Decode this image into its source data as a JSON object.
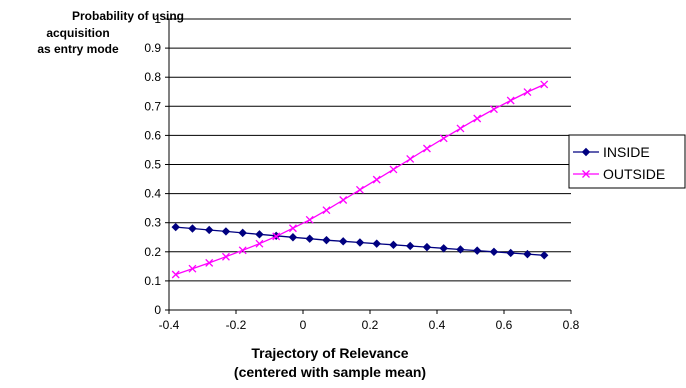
{
  "chart_data": {
    "type": "line",
    "ylabel_lines": [
      "Probability of using",
      "acquisition",
      "as entry mode"
    ],
    "xlabel_lines": [
      "Trajectory of Relevance",
      "(centered with sample mean)"
    ],
    "xlim": [
      -0.4,
      0.8
    ],
    "ylim": [
      0,
      1
    ],
    "x_ticks": [
      "-0.4",
      "-0.2",
      "0",
      "0.2",
      "0.4",
      "0.6",
      "0.8"
    ],
    "y_ticks": [
      "0",
      "0.1",
      "0.2",
      "0.3",
      "0.4",
      "0.5",
      "0.6",
      "0.7",
      "0.8",
      "0.9",
      "1"
    ],
    "grid": "horizontal",
    "legend_position": "right",
    "x": [
      -0.38,
      -0.33,
      -0.28,
      -0.23,
      -0.18,
      -0.13,
      -0.08,
      -0.03,
      0.02,
      0.07,
      0.12,
      0.17,
      0.22,
      0.27,
      0.32,
      0.37,
      0.42,
      0.47,
      0.52,
      0.57,
      0.62,
      0.67,
      0.72
    ],
    "series": [
      {
        "name": "INSIDE",
        "color": "#000080",
        "marker": "diamond",
        "values": [
          0.285,
          0.28,
          0.275,
          0.27,
          0.265,
          0.26,
          0.255,
          0.25,
          0.245,
          0.24,
          0.236,
          0.232,
          0.228,
          0.224,
          0.22,
          0.216,
          0.212,
          0.208,
          0.204,
          0.2,
          0.196,
          0.192,
          0.188
        ]
      },
      {
        "name": "OUTSIDE",
        "color": "#FF00FF",
        "marker": "x",
        "values": [
          0.122,
          0.142,
          0.162,
          0.183,
          0.205,
          0.228,
          0.253,
          0.281,
          0.31,
          0.343,
          0.378,
          0.413,
          0.448,
          0.483,
          0.519,
          0.555,
          0.59,
          0.624,
          0.658,
          0.69,
          0.72,
          0.749,
          0.775
        ]
      }
    ]
  }
}
